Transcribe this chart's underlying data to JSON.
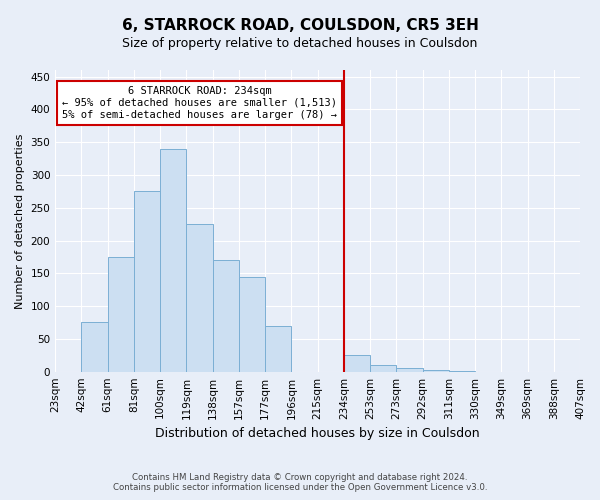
{
  "title": "6, STARROCK ROAD, COULSDON, CR5 3EH",
  "subtitle": "Size of property relative to detached houses in Coulsdon",
  "xlabel": "Distribution of detached houses by size in Coulsdon",
  "ylabel": "Number of detached properties",
  "footnote1": "Contains HM Land Registry data © Crown copyright and database right 2024.",
  "footnote2": "Contains public sector information licensed under the Open Government Licence v3.0.",
  "bin_labels": [
    "23sqm",
    "42sqm",
    "61sqm",
    "81sqm",
    "100sqm",
    "119sqm",
    "138sqm",
    "157sqm",
    "177sqm",
    "196sqm",
    "215sqm",
    "234sqm",
    "253sqm",
    "273sqm",
    "292sqm",
    "311sqm",
    "330sqm",
    "349sqm",
    "369sqm",
    "388sqm",
    "407sqm"
  ],
  "bar_heights": [
    0,
    75,
    175,
    275,
    340,
    225,
    170,
    145,
    70,
    0,
    0,
    25,
    10,
    5,
    3,
    1,
    0,
    0,
    0,
    0
  ],
  "bar_color": "#ccdff2",
  "bar_edge_color": "#7bafd4",
  "property_bin_index": 11,
  "property_label": "6 STARROCK ROAD: 234sqm",
  "annotation_line1": "← 95% of detached houses are smaller (1,513)",
  "annotation_line2": "5% of semi-detached houses are larger (78) →",
  "annotation_box_color": "#ffffff",
  "annotation_box_edge": "#cc0000",
  "vline_color": "#cc0000",
  "ylim": [
    0,
    460
  ],
  "background_color": "#e8eef8",
  "yticks": [
    0,
    50,
    100,
    150,
    200,
    250,
    300,
    350,
    400,
    450
  ],
  "grid_color": "#ffffff",
  "title_fontsize": 11,
  "subtitle_fontsize": 9,
  "ylabel_fontsize": 8,
  "xlabel_fontsize": 9,
  "tick_fontsize": 7.5,
  "annot_fontsize": 7.5
}
